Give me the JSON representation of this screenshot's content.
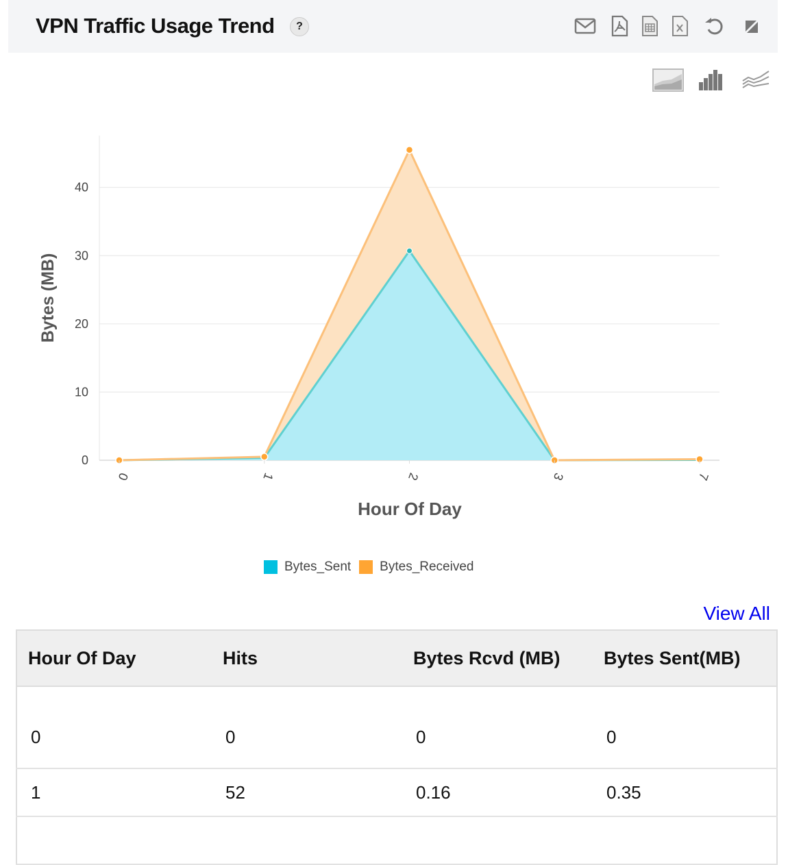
{
  "header": {
    "title": "VPN Traffic Usage Trend",
    "help": "?"
  },
  "toolbar": [
    "envelope-icon",
    "pdf-icon",
    "csv-icon",
    "excel-icon",
    "refresh-icon",
    "collapse-icon"
  ],
  "chart_types": [
    "area-chart-icon",
    "bar-chart-icon",
    "line-chart-icon"
  ],
  "chart_data": {
    "type": "area",
    "stacked": true,
    "categories": [
      "0",
      "1",
      "2",
      "3",
      "7"
    ],
    "series": [
      {
        "name": "Bytes_Sent",
        "values": [
          0,
          0.35,
          30.7,
          0,
          0.05
        ],
        "color": "#00c0e0"
      },
      {
        "name": "Bytes_Received",
        "values": [
          0,
          0.16,
          14.8,
          0,
          0.1
        ],
        "color": "#ffa533"
      }
    ],
    "xlabel": "Hour Of Day",
    "ylabel": "Bytes (MB)",
    "ylim": [
      0,
      47.6
    ],
    "yticks": [
      0,
      10,
      20,
      30,
      40
    ],
    "grid": true,
    "legend": "bottom"
  },
  "view_all": "View All",
  "table": {
    "headers": [
      "Hour Of Day",
      "Hits",
      "Bytes Rcvd (MB)",
      "Bytes Sent(MB)"
    ],
    "rows": [
      [
        "0",
        "0",
        "0",
        "0"
      ],
      [
        "1",
        "52",
        "0.16",
        "0.35"
      ]
    ]
  }
}
